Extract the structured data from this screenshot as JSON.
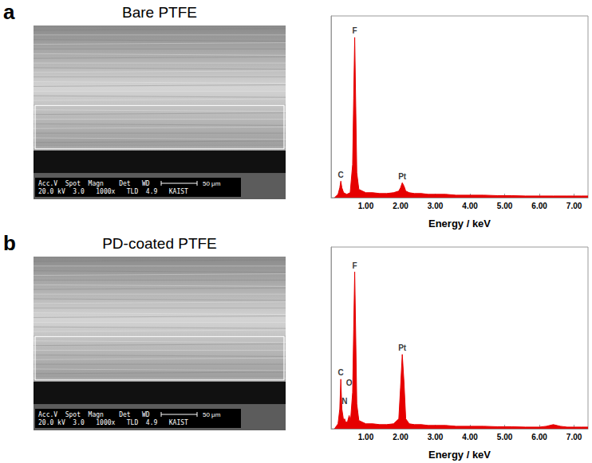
{
  "chart_data": [
    {
      "type": "area",
      "x_label": "Energy / keV",
      "color": "#e60000",
      "grid": false,
      "tick_labels": "x",
      "xlim": [
        0,
        7.4
      ],
      "xticks": [
        {
          "value": 1,
          "label": "1.00"
        },
        {
          "value": 2,
          "label": "2.00"
        },
        {
          "value": 3,
          "label": "3.00"
        },
        {
          "value": 4,
          "label": "4.00"
        },
        {
          "value": 5,
          "label": "5.00"
        },
        {
          "value": 6,
          "label": "6.00"
        },
        {
          "value": 7,
          "label": "7.00"
        }
      ],
      "ylim": [
        0,
        110
      ],
      "x": [
        0.1,
        0.2,
        0.25,
        0.28,
        0.31,
        0.36,
        0.45,
        0.55,
        0.62,
        0.65,
        0.68,
        0.71,
        0.74,
        0.8,
        0.9,
        1.0,
        1.2,
        1.4,
        1.6,
        1.8,
        1.95,
        2.0,
        2.05,
        2.1,
        2.15,
        2.25,
        2.4,
        2.6,
        2.8,
        3.0,
        3.3,
        3.6,
        4.0,
        4.4,
        4.8,
        5.2,
        5.6,
        6.0,
        6.4,
        6.8,
        7.2,
        7.4
      ],
      "values": [
        0,
        2,
        6,
        10,
        6,
        3,
        2,
        3,
        20,
        60,
        97,
        55,
        15,
        5,
        4,
        3,
        3,
        2.5,
        2.5,
        3,
        4,
        6,
        9,
        7,
        4,
        3,
        2.5,
        2.5,
        2,
        2,
        2,
        1.5,
        1.5,
        1.5,
        1.2,
        1.2,
        1,
        1,
        1,
        1,
        1,
        1
      ],
      "annotations": [
        {
          "text": "C",
          "x": 0.28,
          "y": 10
        },
        {
          "text": "F",
          "x": 0.68,
          "y": 97
        },
        {
          "text": "Pt",
          "x": 2.05,
          "y": 9
        }
      ]
    },
    {
      "type": "area",
      "x_label": "Energy / keV",
      "color": "#e60000",
      "grid": false,
      "tick_labels": "x",
      "xlim": [
        0,
        7.4
      ],
      "xticks": [
        {
          "value": 1,
          "label": "1.00"
        },
        {
          "value": 2,
          "label": "2.00"
        },
        {
          "value": 3,
          "label": "3.00"
        },
        {
          "value": 4,
          "label": "4.00"
        },
        {
          "value": 5,
          "label": "5.00"
        },
        {
          "value": 6,
          "label": "6.00"
        },
        {
          "value": 7,
          "label": "7.00"
        }
      ],
      "ylim": [
        0,
        110
      ],
      "x": [
        0.1,
        0.2,
        0.25,
        0.28,
        0.31,
        0.36,
        0.39,
        0.42,
        0.47,
        0.52,
        0.56,
        0.62,
        0.65,
        0.68,
        0.71,
        0.74,
        0.8,
        0.9,
        1.0,
        1.2,
        1.4,
        1.6,
        1.8,
        1.95,
        2.0,
        2.05,
        2.1,
        2.15,
        2.25,
        2.4,
        2.6,
        2.8,
        3.0,
        3.3,
        3.6,
        4.0,
        4.4,
        4.8,
        5.2,
        5.6,
        6.0,
        6.2,
        6.4,
        6.6,
        6.8,
        7.2,
        7.4
      ],
      "values": [
        0,
        3,
        12,
        30,
        12,
        5,
        6,
        4,
        4,
        8,
        5,
        22,
        60,
        95,
        55,
        15,
        5,
        4,
        3,
        3,
        2.5,
        2.5,
        3,
        6,
        25,
        45,
        28,
        6,
        3,
        2.5,
        2.5,
        2,
        2,
        2,
        1.5,
        1.5,
        1.5,
        1.2,
        1.2,
        1,
        1,
        1.5,
        2.5,
        1.5,
        1,
        1,
        1
      ],
      "annotations": [
        {
          "text": "C",
          "x": 0.28,
          "y": 30
        },
        {
          "text": "N",
          "x": 0.39,
          "y": 13
        },
        {
          "text": "O",
          "x": 0.52,
          "y": 24
        },
        {
          "text": "F",
          "x": 0.68,
          "y": 95
        },
        {
          "text": "Pt",
          "x": 2.05,
          "y": 45
        }
      ]
    }
  ],
  "panels": [
    {
      "letter": "a",
      "title": "Bare PTFE",
      "sem_info": [
        "Acc.V  Spot  Magn    Det   WD",
        "20.0 kV  3.0   1000x   TLD  4.9   KAIST"
      ],
      "scale_bar": "50 μm"
    },
    {
      "letter": "b",
      "title": "PD-coated PTFE",
      "sem_info": [
        "Acc.V  Spot  Magn    Det   WD",
        "20.0 kV  3.0   1000x   TLD  4.9   KAIST"
      ],
      "scale_bar": "50 μm"
    }
  ]
}
